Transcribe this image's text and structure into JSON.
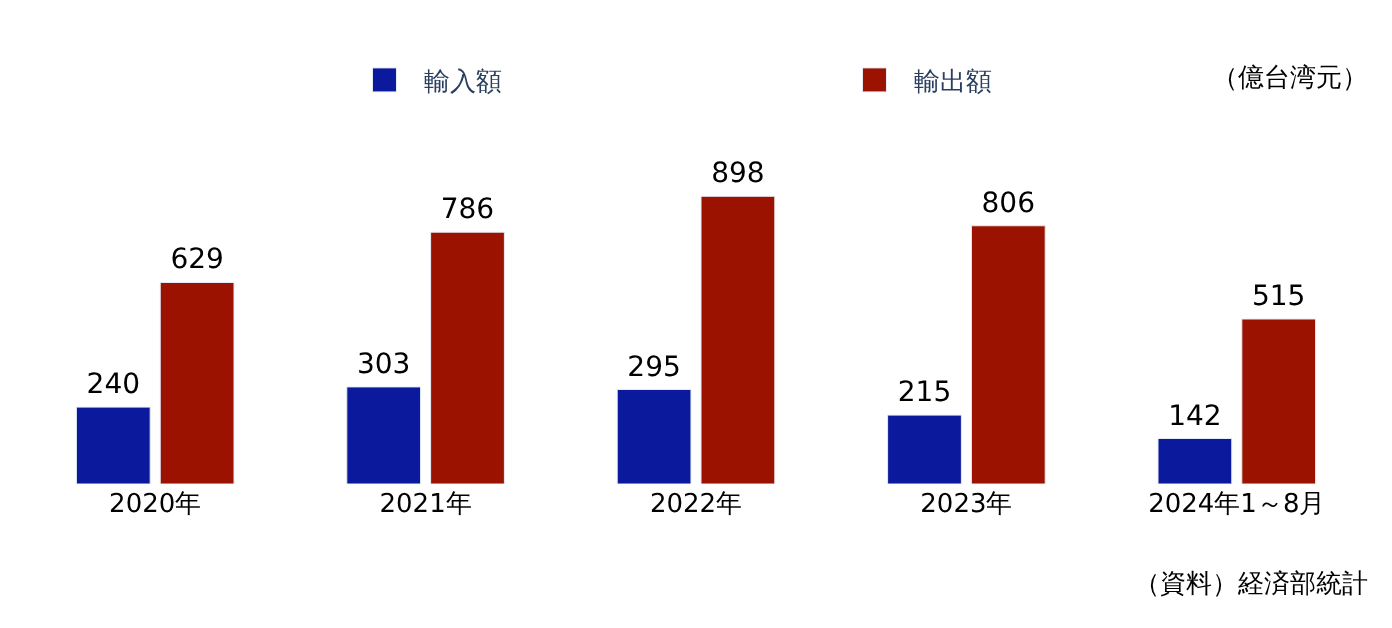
{
  "chart_data": {
    "type": "bar",
    "categories": [
      "2020年",
      "2021年",
      "2022年",
      "2023年",
      "2024年1～8月"
    ],
    "series": [
      {
        "name": "輸入額",
        "color": "#0b1a9c",
        "values": [
          240,
          303,
          295,
          215,
          142
        ]
      },
      {
        "name": "輸出額",
        "color": "#9b1300",
        "values": [
          629,
          786,
          898,
          806,
          515
        ]
      }
    ],
    "data_labels": true,
    "legend": "top",
    "annotations": [
      "（億台湾元）",
      "（資料）経済部統計"
    ]
  }
}
